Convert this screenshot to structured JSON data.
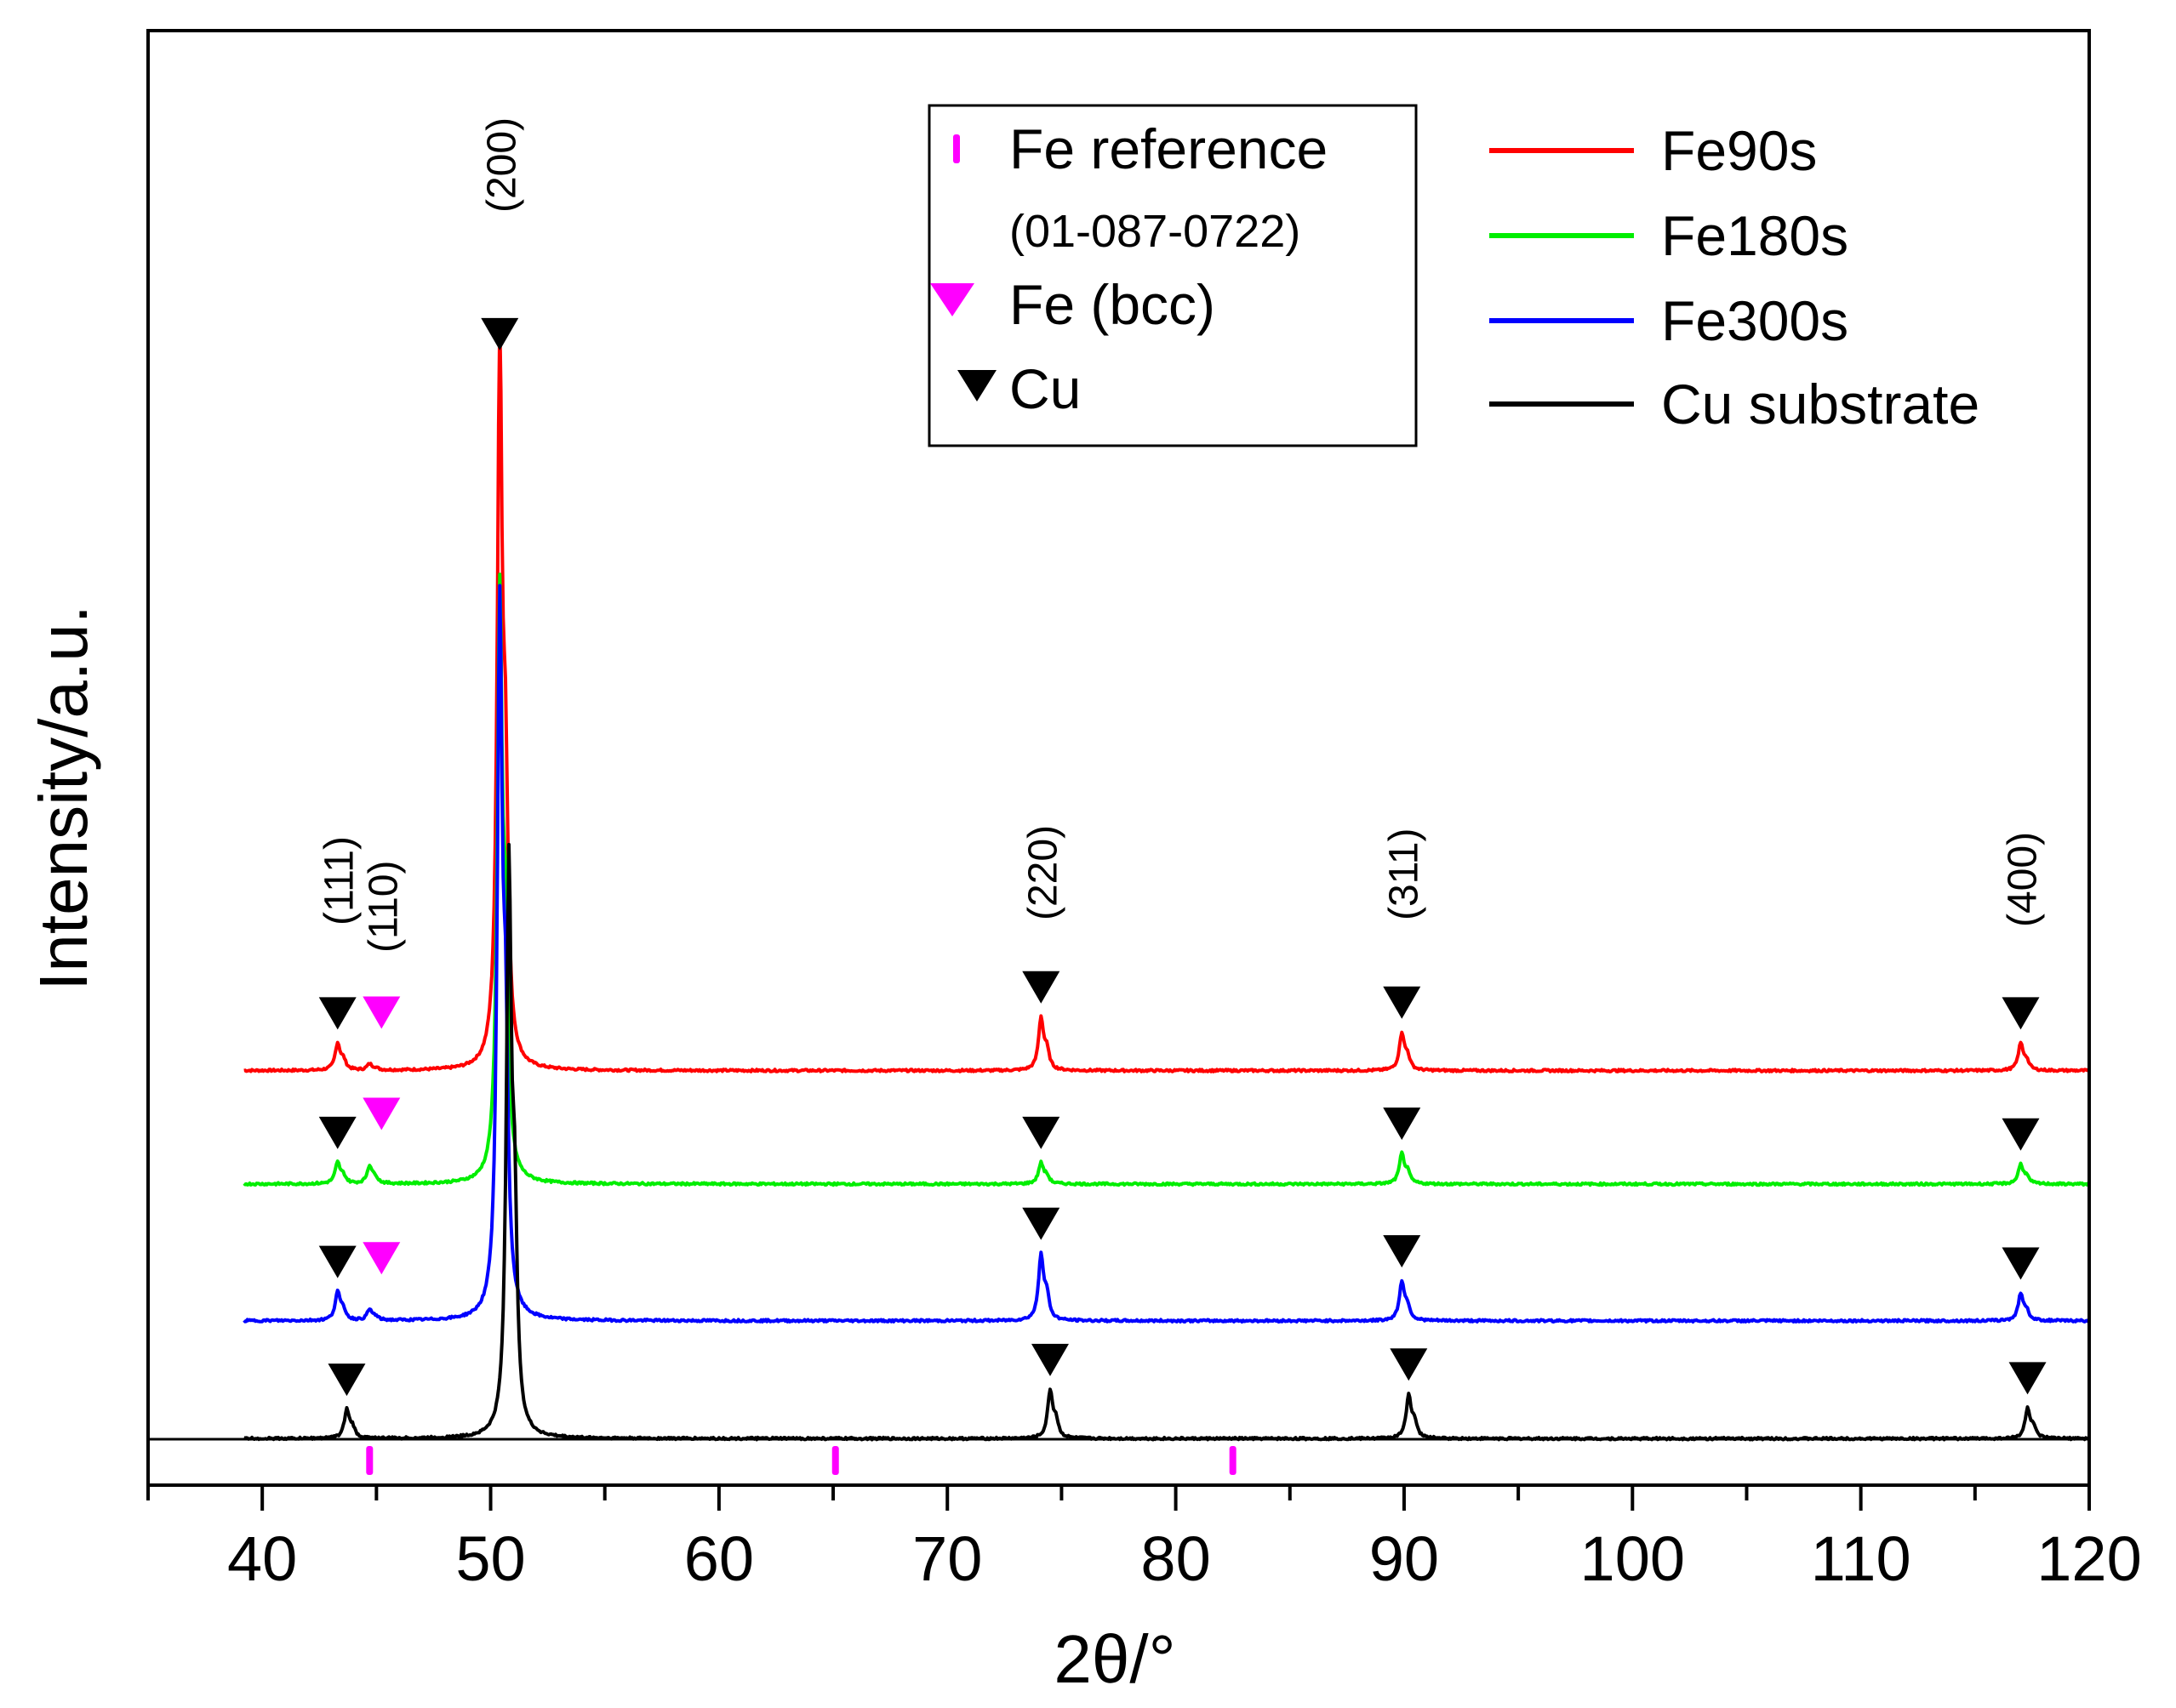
{
  "chart_data": {
    "type": "line",
    "title": "",
    "xlabel": "2θ/°",
    "ylabel": "Intensity/a.u.",
    "xlim": [
      35,
      120
    ],
    "ylim": [
      0,
      100
    ],
    "x_ticks": [
      40,
      50,
      60,
      70,
      80,
      90,
      100,
      110,
      120
    ],
    "y_ticks_shown": false,
    "series": [
      {
        "name": "Fe90s",
        "color": "#ff0000",
        "baseline": 28.5,
        "peaks": [
          [
            43.3,
            1.8
          ],
          [
            44.7,
            0.4
          ],
          [
            50.4,
            48.0
          ],
          [
            74.1,
            3.5
          ],
          [
            89.9,
            2.5
          ],
          [
            117.0,
            1.8
          ]
        ]
      },
      {
        "name": "Fe180s",
        "color": "#00ee00",
        "baseline": 20.7,
        "peaks": [
          [
            43.3,
            1.4
          ],
          [
            44.7,
            1.2
          ],
          [
            50.4,
            39.0
          ],
          [
            74.1,
            1.4
          ],
          [
            89.9,
            2.0
          ],
          [
            117.0,
            1.3
          ]
        ]
      },
      {
        "name": "Fe300s",
        "color": "#0000ff",
        "baseline": 11.3,
        "peaks": [
          [
            43.3,
            1.9
          ],
          [
            44.7,
            0.7
          ],
          [
            50.4,
            47.0
          ],
          [
            74.1,
            4.4
          ],
          [
            89.9,
            2.6
          ],
          [
            117.0,
            1.8
          ]
        ]
      },
      {
        "name": "Cu substrate",
        "color": "#000000",
        "baseline": 3.2,
        "peaks": [
          [
            43.7,
            1.9
          ],
          [
            50.8,
            38.0
          ],
          [
            74.5,
            3.2
          ],
          [
            90.2,
            2.9
          ],
          [
            117.3,
            2.0
          ]
        ]
      }
    ],
    "fe_reference": {
      "label": "Fe reference",
      "card": "(01-087-0722)",
      "color": "#ff00ff",
      "positions": [
        44.7,
        65.1,
        82.5
      ]
    },
    "markers": {
      "cu": {
        "label": "Cu",
        "color": "#000000"
      },
      "fe_bcc": {
        "label": "Fe (bcc)",
        "color": "#ff00ff"
      }
    },
    "hkl_labels": [
      {
        "text": "(111)",
        "x": 43.3
      },
      {
        "text": "(110)",
        "x": 44.7
      },
      {
        "text": "(200)",
        "x": 50.4
      },
      {
        "text": "(220)",
        "x": 74.1
      },
      {
        "text": "(311)",
        "x": 89.9
      },
      {
        "text": "(400)",
        "x": 117.0
      }
    ],
    "marker_rows": [
      {
        "series": "Fe90s",
        "cu": [
          43.3,
          50.4,
          74.1,
          89.9,
          117.0
        ],
        "fe": [
          44.7
        ]
      },
      {
        "series": "Fe180s",
        "cu": [
          43.3,
          74.1,
          89.9,
          117.0
        ],
        "fe": [
          44.7
        ]
      },
      {
        "series": "Fe300s",
        "cu": [
          43.3,
          74.1,
          89.9,
          117.0
        ],
        "fe": [
          44.7
        ]
      },
      {
        "series": "Cu substrate",
        "cu": [
          43.7,
          74.5,
          90.2,
          117.3
        ],
        "fe": []
      }
    ]
  }
}
